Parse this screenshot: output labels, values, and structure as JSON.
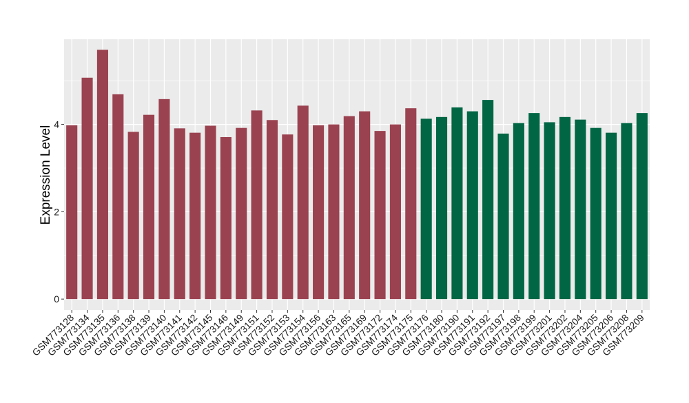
{
  "chart_data": {
    "type": "bar",
    "title": "",
    "xlabel": "",
    "ylabel": "Expression Level",
    "ylim": [
      -0.25,
      5.95
    ],
    "yticks": [
      0,
      2,
      4
    ],
    "grid": true,
    "legend": "none",
    "colors": {
      "group1": "#9B4250",
      "group2": "#006644",
      "panel_bg": "#EBEBEB",
      "grid": "#FFFFFF"
    },
    "categories": [
      "GSM773128",
      "GSM773134",
      "GSM773135",
      "GSM773136",
      "GSM773138",
      "GSM773139",
      "GSM773140",
      "GSM773141",
      "GSM773142",
      "GSM773145",
      "GSM773146",
      "GSM773149",
      "GSM773151",
      "GSM773152",
      "GSM773153",
      "GSM773154",
      "GSM773156",
      "GSM773163",
      "GSM773165",
      "GSM773169",
      "GSM773172",
      "GSM773174",
      "GSM773175",
      "GSM773176",
      "GSM773180",
      "GSM773190",
      "GSM773191",
      "GSM773192",
      "GSM773197",
      "GSM773198",
      "GSM773199",
      "GSM773201",
      "GSM773202",
      "GSM773204",
      "GSM773205",
      "GSM773206",
      "GSM773208",
      "GSM773209"
    ],
    "values": [
      3.98,
      5.07,
      5.71,
      4.69,
      3.83,
      4.22,
      4.58,
      3.91,
      3.81,
      3.97,
      3.71,
      3.92,
      4.32,
      4.1,
      3.77,
      4.43,
      3.98,
      4.0,
      4.19,
      4.3,
      3.85,
      4.0,
      4.37,
      4.13,
      4.17,
      4.39,
      4.3,
      4.56,
      3.79,
      4.03,
      4.26,
      4.05,
      4.17,
      4.11,
      3.92,
      3.81,
      4.03,
      4.26
    ],
    "groups": [
      1,
      1,
      1,
      1,
      1,
      1,
      1,
      1,
      1,
      1,
      1,
      1,
      1,
      1,
      1,
      1,
      1,
      1,
      1,
      1,
      1,
      1,
      1,
      2,
      2,
      2,
      2,
      2,
      2,
      2,
      2,
      2,
      2,
      2,
      2,
      2,
      2,
      2
    ]
  }
}
